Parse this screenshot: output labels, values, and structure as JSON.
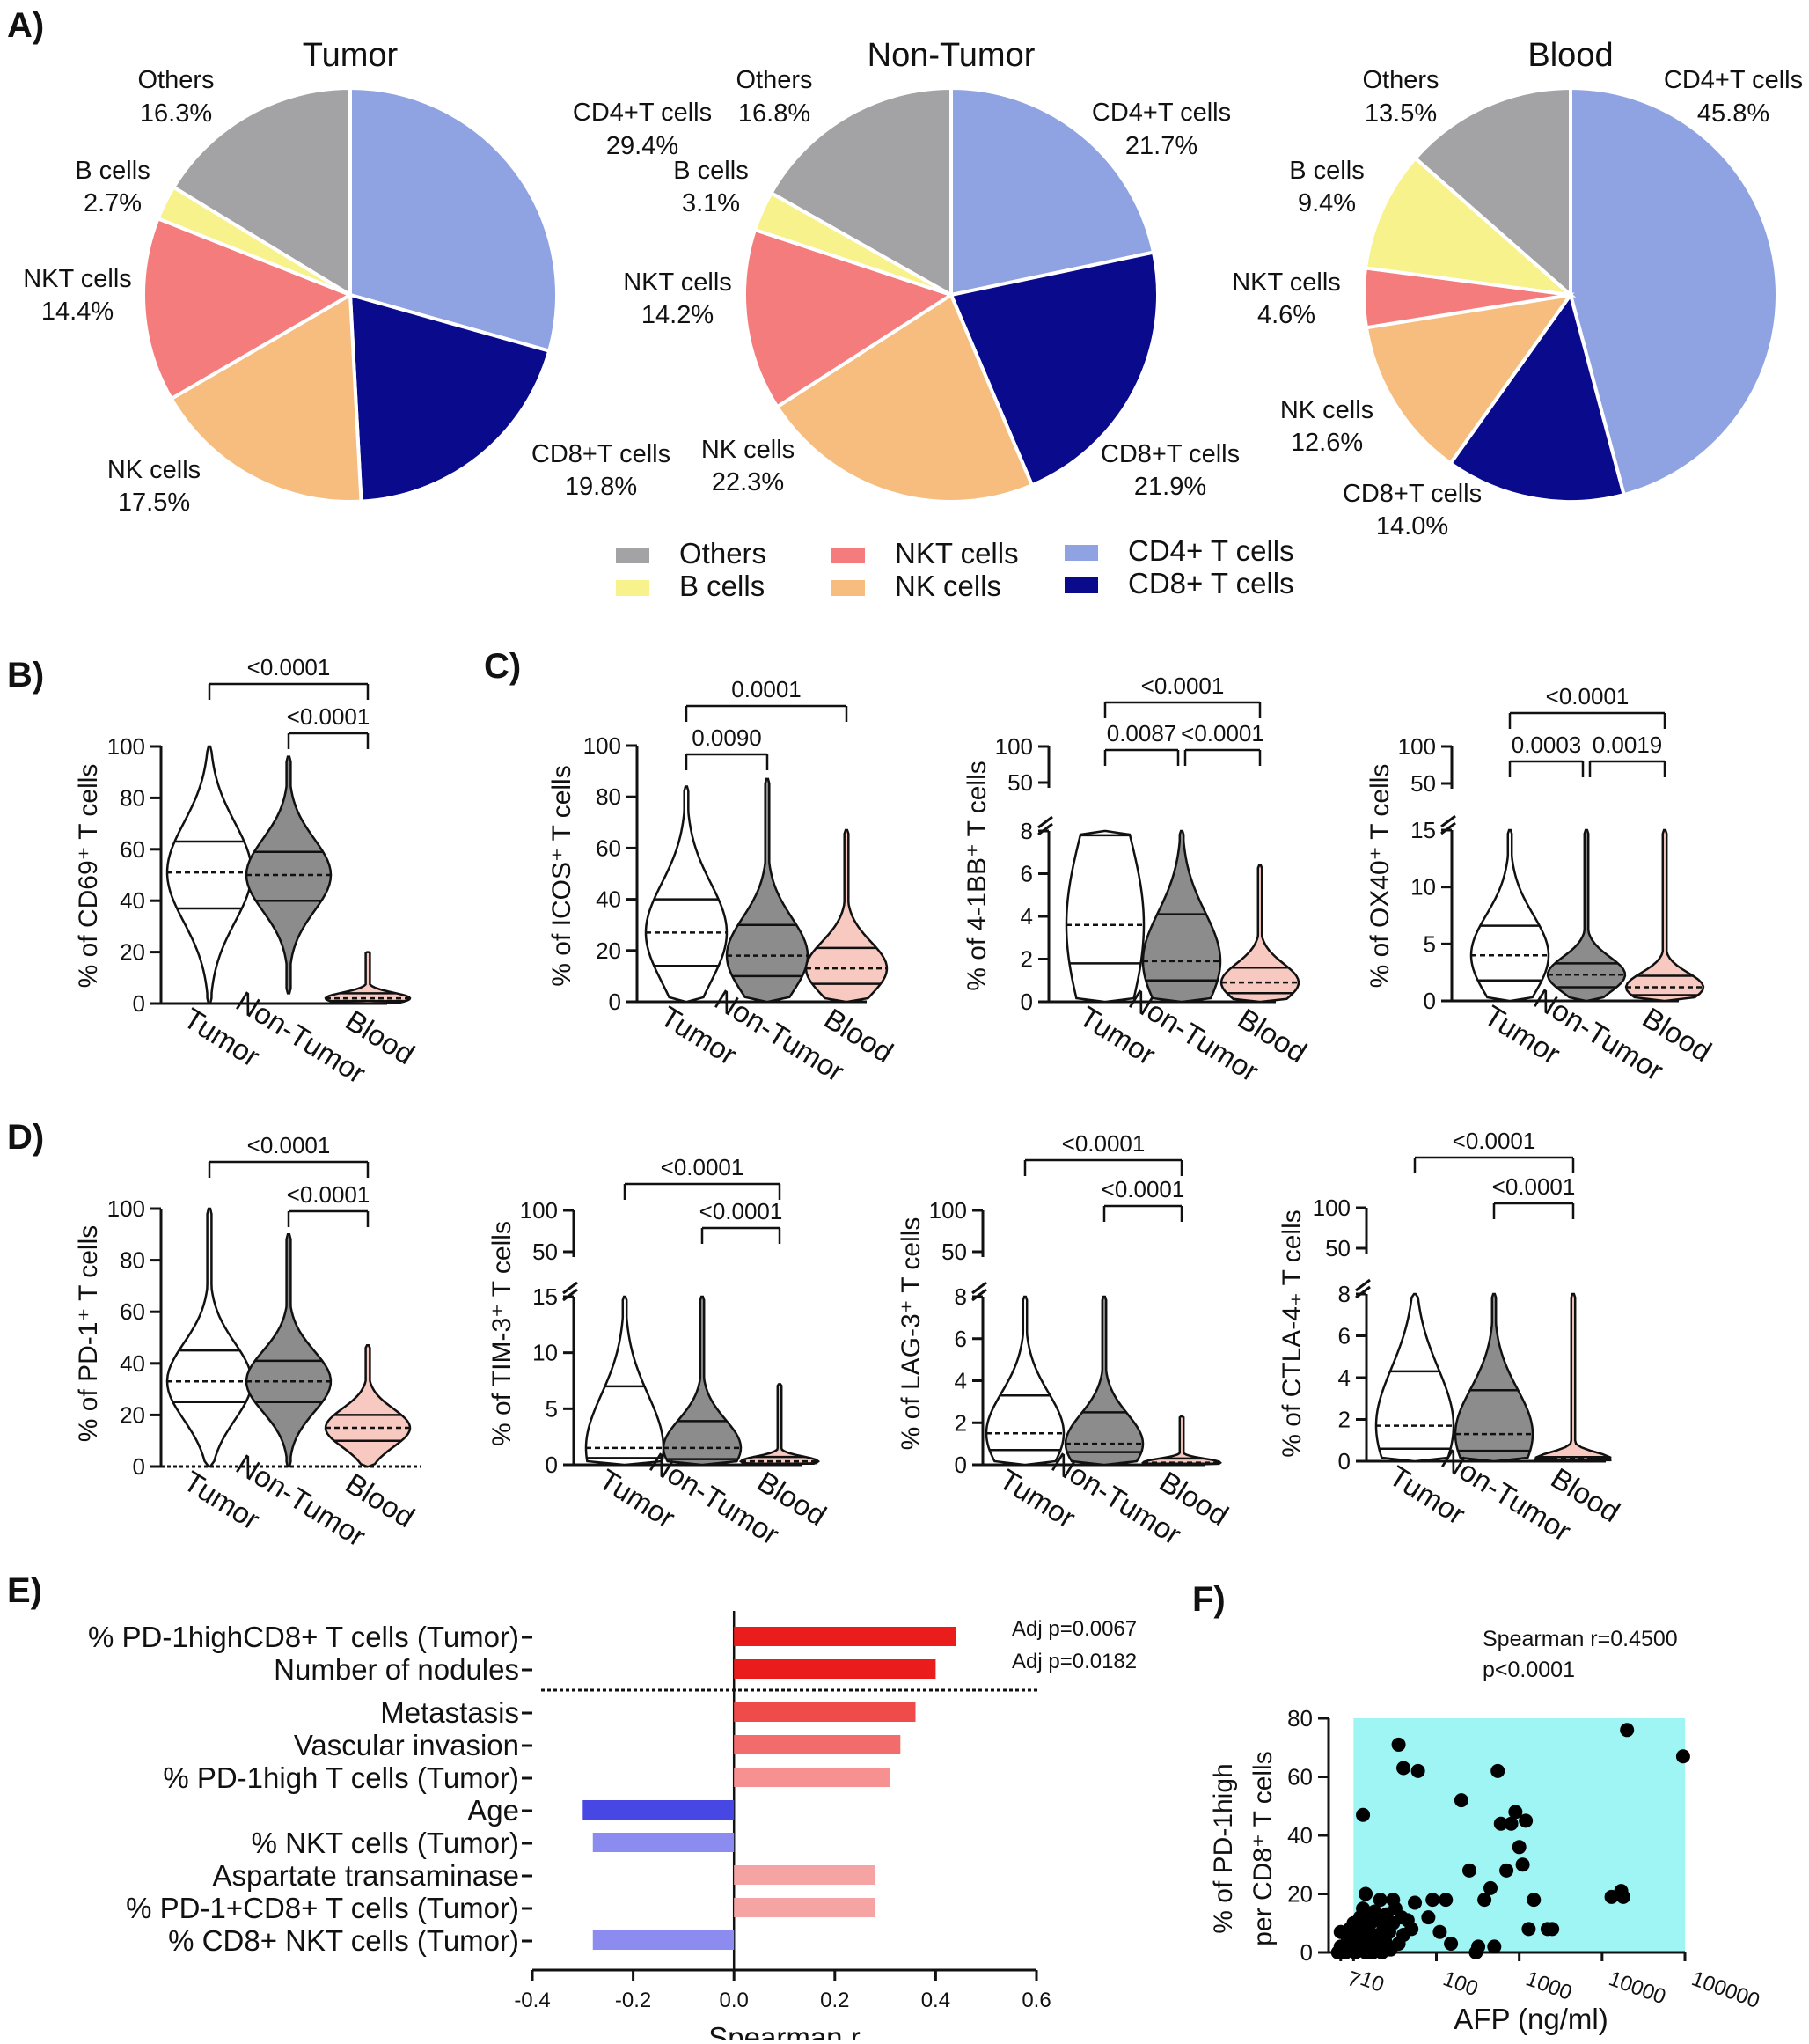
{
  "panel_letters": {
    "a": "A)",
    "b": "B)",
    "c": "C)",
    "d": "D)",
    "e": "E)",
    "f": "F)"
  },
  "legend": {
    "others": "Others",
    "b_cells": "B cells",
    "nkt_cells": "NKT cells",
    "nk_cells": "NK cells",
    "cd4": "CD4+ T cells",
    "cd8": "CD8+ T cells"
  },
  "colors": {
    "cd4": "#8fa3e3",
    "cd8": "#0a0a8c",
    "nk": "#f6bd7e",
    "nkt": "#f47c7c",
    "b": "#f7f28c",
    "others": "#a3a3a6",
    "violin_white": "#ffffff",
    "violin_grey": "#8c8c8c",
    "violin_pink": "#f7c9c0",
    "bar_red_1": "#ea1c1c",
    "bar_red_2": "#f04b4b",
    "bar_red_3": "#f36c6c",
    "bar_red_4": "#f79090",
    "bar_red_5": "#f6a3a3",
    "bar_blue_1": "#4747e3",
    "bar_blue_2": "#8c8cf0",
    "scatter_bg": "#9ff4f4"
  },
  "chart_data": [
    {
      "id": "A",
      "type": "pie",
      "charts": [
        {
          "title": "Tumor",
          "slices": [
            {
              "label": "CD4+T cells",
              "value": 29.4,
              "pct": "29.4%",
              "color_key": "cd4"
            },
            {
              "label": "CD8+T cells",
              "value": 19.8,
              "pct": "19.8%",
              "color_key": "cd8"
            },
            {
              "label": "NK cells",
              "value": 17.5,
              "pct": "17.5%",
              "color_key": "nk"
            },
            {
              "label": "NKT cells",
              "value": 14.4,
              "pct": "14.4%",
              "color_key": "nkt"
            },
            {
              "label": "B cells",
              "value": 2.7,
              "pct": "2.7%",
              "color_key": "b"
            },
            {
              "label": "Others",
              "value": 16.3,
              "pct": "16.3%",
              "color_key": "others"
            }
          ]
        },
        {
          "title": "Non-Tumor",
          "slices": [
            {
              "label": "CD4+T cells",
              "value": 21.7,
              "pct": "21.7%",
              "color_key": "cd4"
            },
            {
              "label": "CD8+T cells",
              "value": 21.9,
              "pct": "21.9%",
              "color_key": "cd8"
            },
            {
              "label": "NK cells",
              "value": 22.3,
              "pct": "22.3%",
              "color_key": "nk"
            },
            {
              "label": "NKT cells",
              "value": 14.2,
              "pct": "14.2%",
              "color_key": "nkt"
            },
            {
              "label": "B cells",
              "value": 3.1,
              "pct": "3.1%",
              "color_key": "b"
            },
            {
              "label": "Others",
              "value": 16.8,
              "pct": "16.8%",
              "color_key": "others"
            }
          ]
        },
        {
          "title": "Blood",
          "slices": [
            {
              "label": "CD4+T cells",
              "value": 45.8,
              "pct": "45.8%",
              "color_key": "cd4"
            },
            {
              "label": "CD8+T cells",
              "value": 14.0,
              "pct": "14.0%",
              "color_key": "cd8"
            },
            {
              "label": "NK cells",
              "value": 12.6,
              "pct": "12.6%",
              "color_key": "nk"
            },
            {
              "label": "NKT cells",
              "value": 4.6,
              "pct": "4.6%",
              "color_key": "nkt"
            },
            {
              "label": "B cells",
              "value": 9.4,
              "pct": "9.4%",
              "color_key": "b"
            },
            {
              "label": "Others",
              "value": 13.5,
              "pct": "13.5%",
              "color_key": "others"
            }
          ]
        }
      ]
    },
    {
      "id": "B",
      "type": "violin",
      "ylabel": "% of CD69⁺ T cells",
      "ylim": [
        0,
        100
      ],
      "yticks": [
        0,
        20,
        40,
        60,
        80,
        100
      ],
      "categories": [
        "Tumor",
        "Non-Tumor",
        "Blood"
      ],
      "groups": [
        {
          "min": 0,
          "max": 100,
          "q1": 37,
          "median": 51,
          "q3": 63,
          "color_key": "violin_white"
        },
        {
          "min": 4,
          "max": 96,
          "q1": 40,
          "median": 50,
          "q3": 59,
          "color_key": "violin_grey"
        },
        {
          "min": 0,
          "max": 20,
          "q1": 1,
          "median": 2,
          "q3": 4,
          "color_key": "violin_pink"
        }
      ],
      "brackets": [
        {
          "from": 0,
          "to": 2,
          "text": "<0.0001"
        },
        {
          "from": 1,
          "to": 2,
          "text": "<0.0001"
        }
      ]
    },
    {
      "id": "C1",
      "type": "violin",
      "ylabel": "% of ICOS⁺ T cells",
      "ylim": [
        0,
        100
      ],
      "yticks": [
        0,
        20,
        40,
        60,
        80,
        100
      ],
      "categories": [
        "Tumor",
        "Non-Tumor",
        "Blood"
      ],
      "groups": [
        {
          "min": 0,
          "max": 84,
          "q1": 14,
          "median": 27,
          "q3": 40,
          "color_key": "violin_white"
        },
        {
          "min": 0,
          "max": 87,
          "q1": 10,
          "median": 18,
          "q3": 30,
          "color_key": "violin_grey"
        },
        {
          "min": 0,
          "max": 67,
          "q1": 7,
          "median": 13,
          "q3": 21,
          "color_key": "violin_pink"
        }
      ],
      "brackets": [
        {
          "from": 0,
          "to": 2,
          "text": "0.0001"
        },
        {
          "from": 0,
          "to": 1,
          "text": "0.0090"
        }
      ]
    },
    {
      "id": "C2",
      "type": "violin",
      "axis_break": true,
      "ylabel": "% of 4-1BB⁺ T cells",
      "yticks_low": [
        0,
        2,
        4,
        6,
        8
      ],
      "yticks_high": [
        50,
        100
      ],
      "categories": [
        "Tumor",
        "Non-Tumor",
        "Blood"
      ],
      "groups": [
        {
          "min": 0,
          "max": 8,
          "q1": 1.8,
          "median": 3.6,
          "q3": 7.8,
          "color_key": "violin_white"
        },
        {
          "min": 0,
          "max": 8,
          "q1": 1.0,
          "median": 1.9,
          "q3": 4.1,
          "color_key": "violin_grey"
        },
        {
          "min": 0,
          "max": 6.4,
          "q1": 0.4,
          "median": 0.9,
          "q3": 1.6,
          "color_key": "violin_pink"
        }
      ],
      "brackets": [
        {
          "from": 0,
          "to": 2,
          "text": "<0.0001"
        },
        {
          "from": 0,
          "to": 1,
          "text": "0.0087"
        },
        {
          "from": 1,
          "to": 2,
          "text": "<0.0001"
        }
      ]
    },
    {
      "id": "C3",
      "type": "violin",
      "axis_break": true,
      "ylabel": "% of OX40⁺ T cells",
      "yticks_low": [
        0,
        5,
        10,
        15
      ],
      "yticks_high": [
        50,
        100
      ],
      "categories": [
        "Tumor",
        "Non-Tumor",
        "Blood"
      ],
      "groups": [
        {
          "min": 0,
          "max": 15,
          "q1": 1.8,
          "median": 4.0,
          "q3": 6.6,
          "color_key": "violin_white"
        },
        {
          "min": 0,
          "max": 15,
          "q1": 1.2,
          "median": 2.3,
          "q3": 3.3,
          "color_key": "violin_grey"
        },
        {
          "min": 0,
          "max": 15,
          "q1": 0.5,
          "median": 1.2,
          "q3": 2.2,
          "color_key": "violin_pink"
        }
      ],
      "brackets": [
        {
          "from": 0,
          "to": 2,
          "text": "<0.0001"
        },
        {
          "from": 0,
          "to": 1,
          "text": "0.0003"
        },
        {
          "from": 1,
          "to": 2,
          "text": "0.0019"
        }
      ]
    },
    {
      "id": "D1",
      "type": "violin",
      "ylabel": "% of PD-1⁺ T cells",
      "ylim": [
        0,
        100
      ],
      "yticks": [
        0,
        20,
        40,
        60,
        80,
        100
      ],
      "categories": [
        "Tumor",
        "Non-Tumor",
        "Blood"
      ],
      "groups": [
        {
          "min": 0,
          "max": 100,
          "q1": 25,
          "median": 33,
          "q3": 45,
          "color_key": "violin_white"
        },
        {
          "min": 0,
          "max": 90,
          "q1": 25,
          "median": 33,
          "q3": 41,
          "color_key": "violin_grey"
        },
        {
          "min": 0,
          "max": 47,
          "q1": 10,
          "median": 15,
          "q3": 20,
          "color_key": "violin_pink"
        }
      ],
      "brackets": [
        {
          "from": 0,
          "to": 2,
          "text": "<0.0001"
        },
        {
          "from": 1,
          "to": 2,
          "text": "<0.0001"
        }
      ]
    },
    {
      "id": "D2",
      "type": "violin",
      "axis_break": true,
      "ylabel": "% of TIM-3⁺ T cells",
      "yticks_low": [
        0,
        5,
        10,
        15
      ],
      "yticks_high": [
        50,
        100
      ],
      "categories": [
        "Tumor",
        "Non-Tumor",
        "Blood"
      ],
      "groups": [
        {
          "min": 0,
          "max": 15,
          "q1": 0.6,
          "median": 1.5,
          "q3": 7.0,
          "color_key": "violin_white"
        },
        {
          "min": 0,
          "max": 15,
          "q1": 0.5,
          "median": 1.5,
          "q3": 3.9,
          "color_key": "violin_grey"
        },
        {
          "min": 0,
          "max": 7.2,
          "q1": 0.1,
          "median": 0.3,
          "q3": 0.7,
          "color_key": "violin_pink"
        }
      ],
      "brackets": [
        {
          "from": 0,
          "to": 2,
          "text": "<0.0001"
        },
        {
          "from": 1,
          "to": 2,
          "text": "<0.0001"
        }
      ]
    },
    {
      "id": "D3",
      "type": "violin",
      "axis_break": true,
      "ylabel": "% of LAG-3⁺ T cells",
      "yticks_low": [
        0,
        2,
        4,
        6,
        8
      ],
      "yticks_high": [
        50,
        100
      ],
      "categories": [
        "Tumor",
        "Non-Tumor",
        "Blood"
      ],
      "groups": [
        {
          "min": 0,
          "max": 8,
          "q1": 0.7,
          "median": 1.5,
          "q3": 3.3,
          "color_key": "violin_white"
        },
        {
          "min": 0,
          "max": 8,
          "q1": 0.6,
          "median": 1.0,
          "q3": 2.5,
          "color_key": "violin_grey"
        },
        {
          "min": 0,
          "max": 2.3,
          "q1": 0.05,
          "median": 0.1,
          "q3": 0.3,
          "color_key": "violin_pink"
        }
      ],
      "brackets": [
        {
          "from": 0,
          "to": 2,
          "text": "<0.0001"
        },
        {
          "from": 1,
          "to": 2,
          "text": "<0.0001"
        }
      ]
    },
    {
      "id": "D4",
      "type": "violin",
      "axis_break": true,
      "ylabel": "% of CTLA-4₊ T cells",
      "yticks_low": [
        0,
        2,
        4,
        6,
        8
      ],
      "yticks_high": [
        50,
        100
      ],
      "categories": [
        "Tumor",
        "Non-Tumor",
        "Blood"
      ],
      "groups": [
        {
          "min": 0,
          "max": 8,
          "q1": 0.6,
          "median": 1.7,
          "q3": 4.3,
          "color_key": "violin_white"
        },
        {
          "min": 0,
          "max": 8,
          "q1": 0.5,
          "median": 1.3,
          "q3": 3.4,
          "color_key": "violin_grey"
        },
        {
          "min": 0,
          "max": 8,
          "q1": 0.05,
          "median": 0.1,
          "q3": 0.2,
          "color_key": "violin_pink"
        }
      ],
      "brackets": [
        {
          "from": 0,
          "to": 2,
          "text": "<0.0001"
        },
        {
          "from": 1,
          "to": 2,
          "text": "<0.0001"
        }
      ]
    },
    {
      "id": "E",
      "type": "bar",
      "orientation": "horizontal",
      "xlabel": "Spearman r",
      "xlim": [
        -0.4,
        0.6
      ],
      "xticks": [
        "-0.4",
        "-0.2",
        "0.0",
        "0.2",
        "0.4",
        "0.6"
      ],
      "bars": [
        {
          "label": "% PD-1highCD8+ T cells (Tumor)",
          "value": 0.44,
          "color_key": "bar_red_1",
          "annotation": "Adj p=0.0067"
        },
        {
          "label": "Number of nodules",
          "value": 0.4,
          "color_key": "bar_red_1",
          "annotation": "Adj p=0.0182"
        },
        {
          "label": "Metastasis",
          "value": 0.36,
          "color_key": "bar_red_2"
        },
        {
          "label": "Vascular invasion",
          "value": 0.33,
          "color_key": "bar_red_3"
        },
        {
          "label": "% PD-1high T cells (Tumor)",
          "value": 0.31,
          "color_key": "bar_red_4"
        },
        {
          "label": "Age",
          "value": -0.3,
          "color_key": "bar_blue_1"
        },
        {
          "label": "% NKT cells (Tumor)",
          "value": -0.28,
          "color_key": "bar_blue_2"
        },
        {
          "label": "Aspartate transaminase",
          "value": 0.28,
          "color_key": "bar_red_5"
        },
        {
          "label": "% PD-1+CD8+ T cells (Tumor)",
          "value": 0.28,
          "color_key": "bar_red_5"
        },
        {
          "label": "% CD8+ NKT cells (Tumor)",
          "value": -0.28,
          "color_key": "bar_blue_2"
        }
      ]
    },
    {
      "id": "F",
      "type": "scatter",
      "x_scale": "log",
      "xlabel": "AFP (ng/ml)",
      "ylabel_line1": "% of PD-1high",
      "ylabel_line2": "per CD8⁺ T cells",
      "ylim": [
        0,
        80
      ],
      "yticks": [
        0,
        20,
        40,
        60,
        80
      ],
      "xlim": [
        5,
        100000
      ],
      "xticks": [
        "7",
        "10",
        "100",
        "1000",
        "10000",
        "100000"
      ],
      "annotation_line1": "Spearman r=0.4500",
      "annotation_line2": "p<0.0001",
      "highlight_region": {
        "x": [
          10,
          100000
        ],
        "y": [
          0,
          80
        ]
      },
      "points": [
        [
          6.5,
          0
        ],
        [
          7,
          7
        ],
        [
          7,
          2
        ],
        [
          8,
          0
        ],
        [
          8.5,
          5
        ],
        [
          9,
          8
        ],
        [
          9,
          4
        ],
        [
          9.5,
          2
        ],
        [
          10,
          10
        ],
        [
          10,
          6
        ],
        [
          10.5,
          0
        ],
        [
          11,
          9
        ],
        [
          11,
          3
        ],
        [
          12,
          12
        ],
        [
          12,
          7
        ],
        [
          12.5,
          1
        ],
        [
          13,
          15
        ],
        [
          13,
          5
        ],
        [
          14,
          0
        ],
        [
          14,
          20
        ],
        [
          15,
          8
        ],
        [
          15,
          12
        ],
        [
          16,
          2
        ],
        [
          16,
          10
        ],
        [
          17,
          5
        ],
        [
          17,
          0
        ],
        [
          18,
          14
        ],
        [
          19,
          3
        ],
        [
          20,
          6
        ],
        [
          20,
          11
        ],
        [
          21,
          18
        ],
        [
          22,
          0
        ],
        [
          23,
          9
        ],
        [
          24,
          4
        ],
        [
          25,
          13
        ],
        [
          27,
          7
        ],
        [
          28,
          1
        ],
        [
          30,
          10
        ],
        [
          32,
          15
        ],
        [
          35,
          3
        ],
        [
          38,
          12
        ],
        [
          40,
          6
        ],
        [
          45,
          11
        ],
        [
          50,
          8
        ],
        [
          55,
          17
        ],
        [
          13,
          47
        ],
        [
          30,
          18
        ],
        [
          35,
          71
        ],
        [
          40,
          63
        ],
        [
          60,
          62
        ],
        [
          80,
          12
        ],
        [
          90,
          18
        ],
        [
          110,
          7
        ],
        [
          130,
          18
        ],
        [
          150,
          3
        ],
        [
          200,
          52
        ],
        [
          250,
          28
        ],
        [
          300,
          0
        ],
        [
          320,
          2
        ],
        [
          380,
          18
        ],
        [
          450,
          22
        ],
        [
          500,
          2
        ],
        [
          550,
          62
        ],
        [
          600,
          44
        ],
        [
          700,
          28
        ],
        [
          800,
          44
        ],
        [
          900,
          48
        ],
        [
          1000,
          36
        ],
        [
          1100,
          30
        ],
        [
          1200,
          45
        ],
        [
          1300,
          8
        ],
        [
          1500,
          18
        ],
        [
          2200,
          8
        ],
        [
          2500,
          8
        ],
        [
          13000,
          19
        ],
        [
          17000,
          21
        ],
        [
          18000,
          19
        ],
        [
          20000,
          76
        ],
        [
          95000,
          67
        ]
      ]
    }
  ]
}
